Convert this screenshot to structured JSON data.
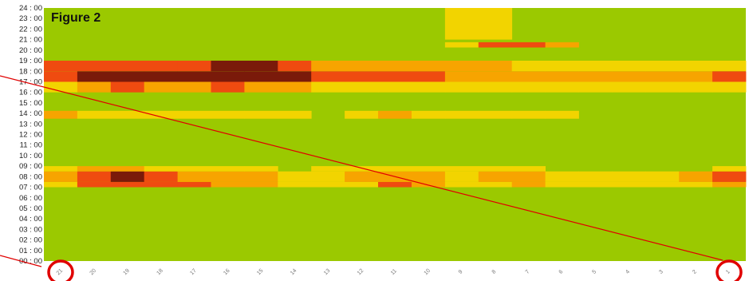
{
  "chart_data": {
    "type": "heatmap",
    "title": "Figure 2",
    "y_tick_labels": [
      "00 : 00",
      "01 : 00",
      "02 : 00",
      "03 : 00",
      "04 : 00",
      "05 : 00",
      "06 : 00",
      "07 : 00",
      "08 : 00",
      "09 : 00",
      "10 : 00",
      "11 : 00",
      "12 : 00",
      "13 : 00",
      "14 : 00",
      "15 : 00",
      "16 : 00",
      "17 : 00",
      "18 : 00",
      "19 : 00",
      "20 : 00",
      "21 : 00",
      "22 : 00",
      "23 : 00",
      "24 : 00"
    ],
    "columns": [
      "21",
      "20",
      "19",
      "18",
      "17",
      "16",
      "15",
      "14",
      "13",
      "12",
      "11",
      "10",
      "9",
      "8",
      "7",
      "6",
      "5",
      "4",
      "3",
      "2",
      "1"
    ],
    "highlighted_columns": [
      "21",
      "1"
    ],
    "intensity_scale_0_to_4": {
      "bands": [
        {
          "from": "07:00",
          "to": "07:30",
          "values": [
            1,
            3,
            3,
            3,
            3,
            2,
            2,
            1,
            1,
            1,
            3,
            2,
            1,
            1,
            2,
            1,
            1,
            1,
            1,
            1,
            2
          ]
        },
        {
          "from": "07:30",
          "to": "08:30",
          "values": [
            2,
            3,
            4,
            3,
            2,
            2,
            2,
            1,
            1,
            2,
            2,
            2,
            1,
            2,
            2,
            1,
            1,
            1,
            1,
            2,
            3
          ]
        },
        {
          "from": "08:30",
          "to": "09:00",
          "values": [
            1,
            2,
            2,
            1,
            1,
            1,
            1,
            0,
            1,
            1,
            1,
            1,
            1,
            1,
            1,
            0,
            0,
            0,
            0,
            0,
            1
          ]
        },
        {
          "from": "13:30",
          "to": "14:15",
          "values": [
            2,
            1,
            1,
            1,
            1,
            1,
            1,
            1,
            0,
            1,
            2,
            1,
            1,
            1,
            1,
            1,
            0,
            0,
            0,
            0,
            0
          ]
        },
        {
          "from": "16:00",
          "to": "17:00",
          "values": [
            1,
            2,
            3,
            2,
            2,
            3,
            2,
            2,
            1,
            1,
            1,
            1,
            1,
            1,
            1,
            1,
            1,
            1,
            1,
            1,
            1
          ]
        },
        {
          "from": "17:00",
          "to": "18:00",
          "values": [
            3,
            4,
            4,
            4,
            4,
            4,
            4,
            4,
            3,
            3,
            3,
            3,
            2,
            2,
            2,
            2,
            2,
            2,
            2,
            2,
            3
          ]
        },
        {
          "from": "18:00",
          "to": "19:00",
          "values": [
            3,
            3,
            3,
            3,
            3,
            4,
            4,
            3,
            2,
            2,
            2,
            2,
            2,
            2,
            1,
            1,
            1,
            1,
            1,
            1,
            1
          ]
        },
        {
          "from": "20:15",
          "to": "20:45",
          "values": [
            0,
            0,
            0,
            0,
            0,
            0,
            0,
            0,
            0,
            0,
            0,
            0,
            1,
            3,
            3,
            2,
            0,
            0,
            0,
            0,
            0
          ]
        },
        {
          "from": "21:00",
          "to": "24:00",
          "values": [
            0,
            0,
            0,
            0,
            0,
            0,
            0,
            0,
            0,
            0,
            0,
            0,
            1,
            1,
            0,
            0,
            0,
            0,
            0,
            0,
            0
          ]
        }
      ]
    },
    "colors": {
      "background": "#9bc900",
      "scale": [
        "#9bc900",
        "#f2d400",
        "#f7a400",
        "#ef4b10",
        "#7a1a0a"
      ],
      "annotation": "#e00000"
    }
  }
}
